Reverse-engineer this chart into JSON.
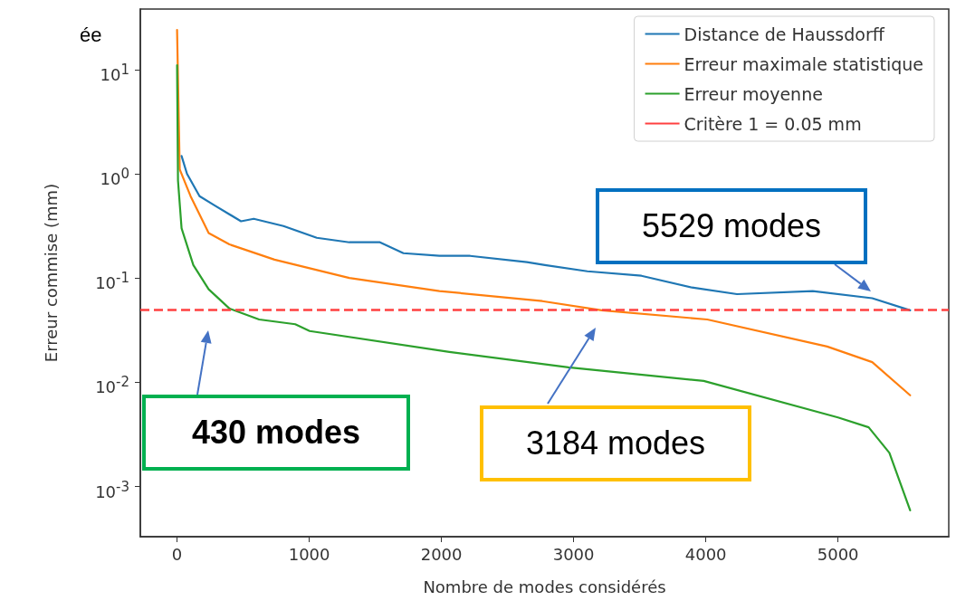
{
  "chart_data": {
    "type": "line",
    "xlabel": "Nombre de modes considérés",
    "ylabel": "Erreur commise (mm)",
    "log": "y",
    "xlim": [
      -278,
      5838
    ],
    "ylim": [
      0.00033,
      38
    ],
    "xticks": [
      0,
      1000,
      2000,
      3000,
      4000,
      5000
    ],
    "yticks": [
      {
        "value": 0.001,
        "label": "10$^{-3}$"
      },
      {
        "value": 0.01,
        "label": "10$^{-2}$"
      },
      {
        "value": 0.1,
        "label": "10$^{-1}$"
      },
      {
        "value": 1,
        "label": "10$^{0}$"
      },
      {
        "value": 10,
        "label": "10$^{1}$"
      }
    ],
    "grid": false,
    "legend": "top right",
    "marker": "none",
    "line_style": "solid",
    "series": [
      {
        "name": "Distance de Haussdorff",
        "color": "#1f77b4",
        "x": [
          34,
          75,
          170,
          280,
          484,
          580,
          805,
          1057,
          1303,
          1535,
          1712,
          1985,
          2217,
          2647,
          2783,
          3104,
          3513,
          3895,
          4236,
          4809,
          5259,
          5546
        ],
        "values": [
          1.48,
          1.0,
          0.61,
          0.5,
          0.35,
          0.37,
          0.315,
          0.243,
          0.22,
          0.22,
          0.173,
          0.163,
          0.163,
          0.142,
          0.133,
          0.116,
          0.105,
          0.081,
          0.07,
          0.075,
          0.064,
          0.049
        ]
      },
      {
        "name": "Erreur maximale statistique",
        "color": "#ff7f0e",
        "x": [
          0,
          20,
          102,
          239,
          396,
          737,
          1303,
          1985,
          2763,
          3213,
          4011,
          4918,
          5259,
          5546
        ],
        "values": [
          24,
          1.1,
          0.61,
          0.27,
          0.21,
          0.15,
          0.1,
          0.075,
          0.06,
          0.049,
          0.04,
          0.022,
          0.0156,
          0.0075
        ]
      },
      {
        "name": "Erreur moyenne",
        "color": "#2ca02c",
        "x": [
          0,
          7,
          34,
          123,
          239,
          396,
          621,
          894,
          1003,
          2060,
          2960,
          3984,
          5000,
          5232,
          5389,
          5546
        ],
        "values": [
          11,
          0.86,
          0.3,
          0.133,
          0.078,
          0.051,
          0.04,
          0.036,
          0.031,
          0.0195,
          0.0139,
          0.0103,
          0.0046,
          0.0037,
          0.0021,
          0.00059
        ]
      }
    ],
    "ref_lines": [
      {
        "axis": "y",
        "value": 0.05,
        "label": "Critère 1 = 0.05 mm",
        "color": "#ff4040",
        "line_style": "dashed"
      }
    ],
    "annotations": [
      "ée",
      "430 modes",
      "3184 modes",
      "5529 modes"
    ]
  }
}
